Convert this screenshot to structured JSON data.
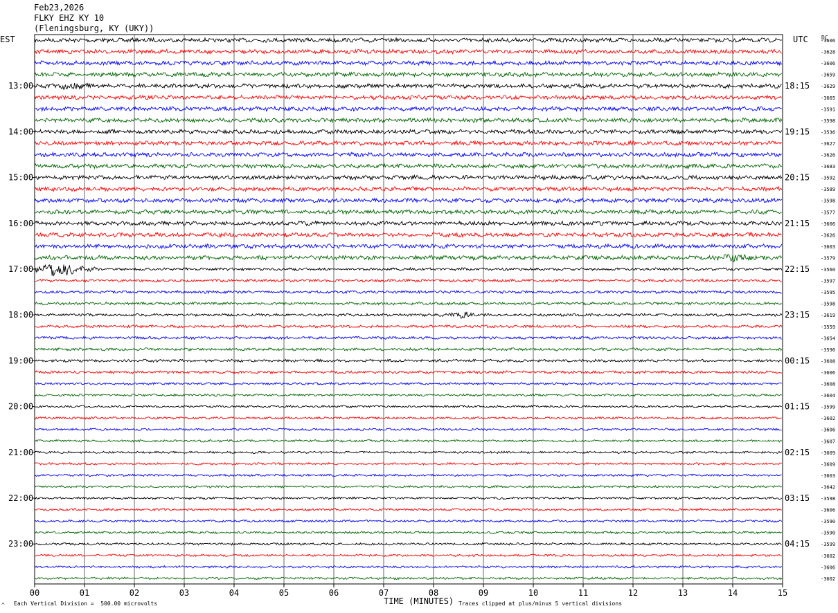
{
  "header": {
    "date": "Feb23,2026",
    "station": "FLKY EHZ KY 10",
    "location": "(Fleningsburg, KY (UKY))"
  },
  "axis": {
    "left_tz": "EST",
    "right_tz": "UTC",
    "dc_label": "DC",
    "xlabel": "TIME (MINUTES)"
  },
  "footer": {
    "scale_note": "Each Vertical Division =  500.00 microvolts",
    "clip_note": "Traces clipped at plus/minus 5 vertical divisions",
    "corner_mark": "^"
  },
  "chart_data": {
    "type": "line",
    "title": "FLKY EHZ KY 10",
    "xlabel": "TIME (MINUTES)",
    "xlim": [
      0,
      15
    ],
    "x_ticks": [
      "00",
      "01",
      "02",
      "03",
      "04",
      "05",
      "06",
      "07",
      "08",
      "09",
      "10",
      "11",
      "12",
      "13",
      "14",
      "15"
    ],
    "trace_colors": [
      "#000000",
      "#ff0000",
      "#0000ff",
      "#006400"
    ],
    "rows_per_hour": 4,
    "row_count": 48,
    "left_hour_labels": [
      "13:00",
      "14:00",
      "15:00",
      "16:00",
      "17:00",
      "18:00",
      "19:00",
      "20:00",
      "21:00",
      "22:00",
      "23:00"
    ],
    "right_hour_labels": [
      "18:15",
      "19:15",
      "20:15",
      "21:15",
      "22:15",
      "23:15",
      "00:15",
      "01:15",
      "02:15",
      "03:15",
      "04:15"
    ],
    "dc_offsets": [
      "-3606",
      "-3628",
      "-3606",
      "-3659",
      "-3629",
      "-3665",
      "-3591",
      "-3598",
      "-3536",
      "-3627",
      "-3626",
      "-3683",
      "-3592",
      "-3589",
      "-3598",
      "-3577",
      "-3606",
      "-3626",
      "-3603",
      "-3579",
      "-3560",
      "-3597",
      "-3595",
      "-3598",
      "-3619",
      "-3559",
      "-3654",
      "-3596",
      "-3608",
      "-3606",
      "-3608",
      "-3604",
      "-3599",
      "-3602",
      "-3606",
      "-3607",
      "-3609",
      "-3609",
      "-3603",
      "-3642",
      "-3598",
      "-3606",
      "-3590",
      "-3590",
      "-3599",
      "-3602",
      "-3606",
      "-3602"
    ],
    "events": [
      {
        "row": 4,
        "minute": 0.7,
        "note": "burst"
      },
      {
        "row": 19,
        "minute": 14.0,
        "note": "burst"
      },
      {
        "row": 20,
        "minute": 0.5,
        "note": "earthquake"
      },
      {
        "row": 24,
        "minute": 8.6,
        "note": "burst"
      }
    ],
    "grid": true,
    "noise_level": "low"
  }
}
